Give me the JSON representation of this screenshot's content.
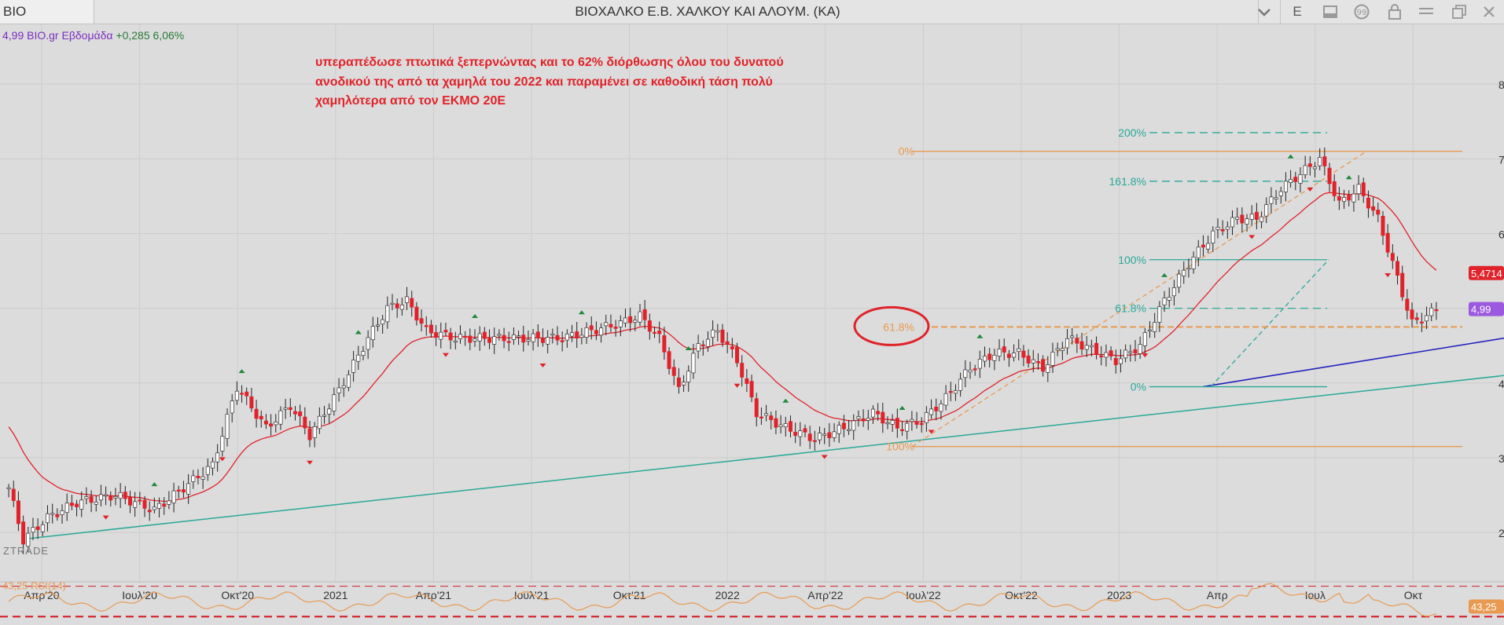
{
  "app": {
    "symbol": "BIO",
    "window_title": "ΒΙΟΧΑΛΚΟ Ε.Β. ΧΑΛΚΟΥ  ΚΑΙ  ΑΛΟΥΜ. (ΚΑ)",
    "period_button": "E",
    "info": {
      "price": "4,99",
      "name": "BIO.gr",
      "period": "Εβδομάδα",
      "change": "+0,285",
      "change_pct": "6,06%"
    },
    "watermark": "ZTRADE"
  },
  "annotation_lines": [
    "υπεραπέδωσε πτωτικά ξεπερνώντας και το 62% διόρθωσης όλου του δυνατού",
    "ανοδικού της από τα χαμηλά του 2022 και παραμένει σε καθοδική τάση πολύ",
    "χαμηλότερα από τον ΕΚΜΟ 20Ε"
  ],
  "chart_data": {
    "type": "candlestick",
    "x_labels": [
      "Απρ'20",
      "Ιουλ'20",
      "Οκτ'20",
      "2021",
      "Απρ'21",
      "Ιουλ'21",
      "Οκτ'21",
      "2022",
      "Απρ'22",
      "Ιουλ'22",
      "Οκτ'22",
      "2023",
      "Απρ",
      "Ιουλ",
      "Οκτ"
    ],
    "y_ticks": [
      2,
      3,
      4,
      5,
      6,
      7,
      8
    ],
    "ylim": [
      1.55,
      8.4
    ],
    "last_price": 4.99,
    "price_label": "4,99",
    "ema_label": "5,4714",
    "ema_value": 5.4714,
    "colors": {
      "up_candle": "#ffffff",
      "down_candle": "#e0232a",
      "ema": "#e0232a",
      "fib_orange": "#e89a52",
      "fib_teal": "#2aa898",
      "trend_blue": "#2222bb",
      "long_trend": "#2aa898",
      "rsi": "#e89a52",
      "price_tag": "#9b59e0",
      "ema_tag": "#e0232a"
    },
    "fib_retracement": [
      {
        "label": "0%",
        "price": 7.1
      },
      {
        "label": "61.8%",
        "price": 4.75
      },
      {
        "label": "100%",
        "price": 3.15
      }
    ],
    "fib_extension": [
      {
        "label": "200%",
        "price": 7.35
      },
      {
        "label": "161.8%",
        "price": 6.7
      },
      {
        "label": "100%",
        "price": 5.65
      },
      {
        "label": "61.8%",
        "price": 5.0
      },
      {
        "label": "0%",
        "price": 3.95
      }
    ],
    "rsi": {
      "label": "43,25 RSI(14)",
      "value": 43.25,
      "value_label": "43,25",
      "levels": [
        70,
        30
      ]
    }
  }
}
